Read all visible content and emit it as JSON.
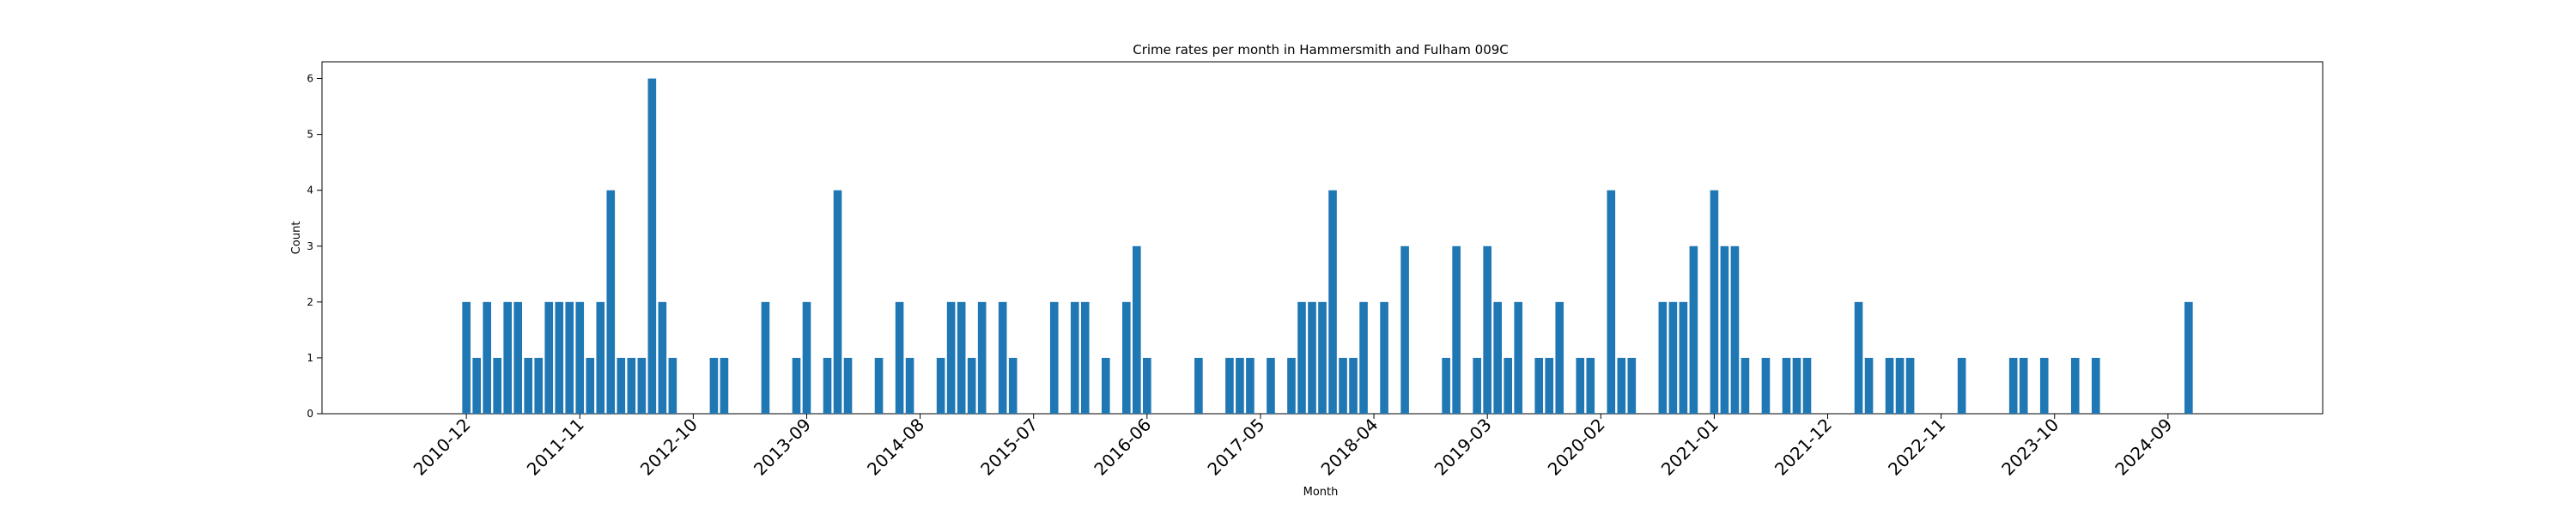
{
  "chart_data": {
    "type": "bar",
    "title": "Crime rates per month in Hammersmith and Fulham 009C",
    "xlabel": "Month",
    "ylabel": "Count",
    "ylim": [
      0,
      6.3
    ],
    "yticks": [
      0,
      1,
      2,
      3,
      4,
      5,
      6
    ],
    "xlim": [
      "2009-10",
      "2025-12"
    ],
    "xticks": [
      "2010-12",
      "2011-11",
      "2012-10",
      "2013-09",
      "2014-08",
      "2015-07",
      "2016-06",
      "2017-05",
      "2018-04",
      "2019-03",
      "2020-02",
      "2021-01",
      "2021-12",
      "2022-11",
      "2023-10",
      "2024-09"
    ],
    "bar_color": "#1f77b4",
    "grid": false,
    "months": [
      "2010-12",
      "2011-01",
      "2011-02",
      "2011-03",
      "2011-04",
      "2011-05",
      "2011-06",
      "2011-07",
      "2011-08",
      "2011-09",
      "2011-10",
      "2011-11",
      "2011-12",
      "2012-01",
      "2012-02",
      "2012-03",
      "2012-04",
      "2012-05",
      "2012-06",
      "2012-07",
      "2012-08",
      "2012-12",
      "2013-01",
      "2013-05",
      "2013-08",
      "2013-09",
      "2013-11",
      "2013-12",
      "2014-01",
      "2014-04",
      "2014-06",
      "2014-07",
      "2014-10",
      "2014-11",
      "2014-12",
      "2015-01",
      "2015-02",
      "2015-04",
      "2015-05",
      "2015-09",
      "2015-11",
      "2015-12",
      "2016-02",
      "2016-04",
      "2016-05",
      "2016-06",
      "2016-11",
      "2017-02",
      "2017-03",
      "2017-04",
      "2017-06",
      "2017-08",
      "2017-09",
      "2017-10",
      "2017-11",
      "2017-12",
      "2018-01",
      "2018-02",
      "2018-03",
      "2018-05",
      "2018-07",
      "2018-11",
      "2018-12",
      "2019-02",
      "2019-03",
      "2019-04",
      "2019-05",
      "2019-06",
      "2019-08",
      "2019-09",
      "2019-10",
      "2019-12",
      "2020-01",
      "2020-03",
      "2020-04",
      "2020-05",
      "2020-08",
      "2020-09",
      "2020-10",
      "2020-11",
      "2021-01",
      "2021-02",
      "2021-03",
      "2021-04",
      "2021-06",
      "2021-08",
      "2021-09",
      "2021-10",
      "2022-03",
      "2022-04",
      "2022-06",
      "2022-07",
      "2022-08",
      "2023-01",
      "2023-06",
      "2023-07",
      "2023-09",
      "2023-12",
      "2024-02",
      "2024-11"
    ],
    "values": [
      2,
      1,
      2,
      1,
      2,
      2,
      1,
      1,
      2,
      2,
      2,
      2,
      1,
      2,
      4,
      1,
      1,
      1,
      6,
      2,
      1,
      1,
      1,
      2,
      1,
      2,
      1,
      4,
      1,
      1,
      2,
      1,
      1,
      2,
      2,
      1,
      2,
      2,
      1,
      2,
      2,
      2,
      1,
      2,
      3,
      1,
      1,
      1,
      1,
      1,
      1,
      1,
      2,
      2,
      2,
      4,
      1,
      1,
      2,
      2,
      3,
      1,
      3,
      1,
      3,
      2,
      1,
      2,
      1,
      1,
      2,
      1,
      1,
      4,
      1,
      1,
      2,
      2,
      2,
      3,
      4,
      3,
      3,
      1,
      1,
      1,
      1,
      1,
      2,
      1,
      1,
      1,
      1,
      1,
      1,
      1,
      1,
      1,
      1,
      2
    ]
  }
}
